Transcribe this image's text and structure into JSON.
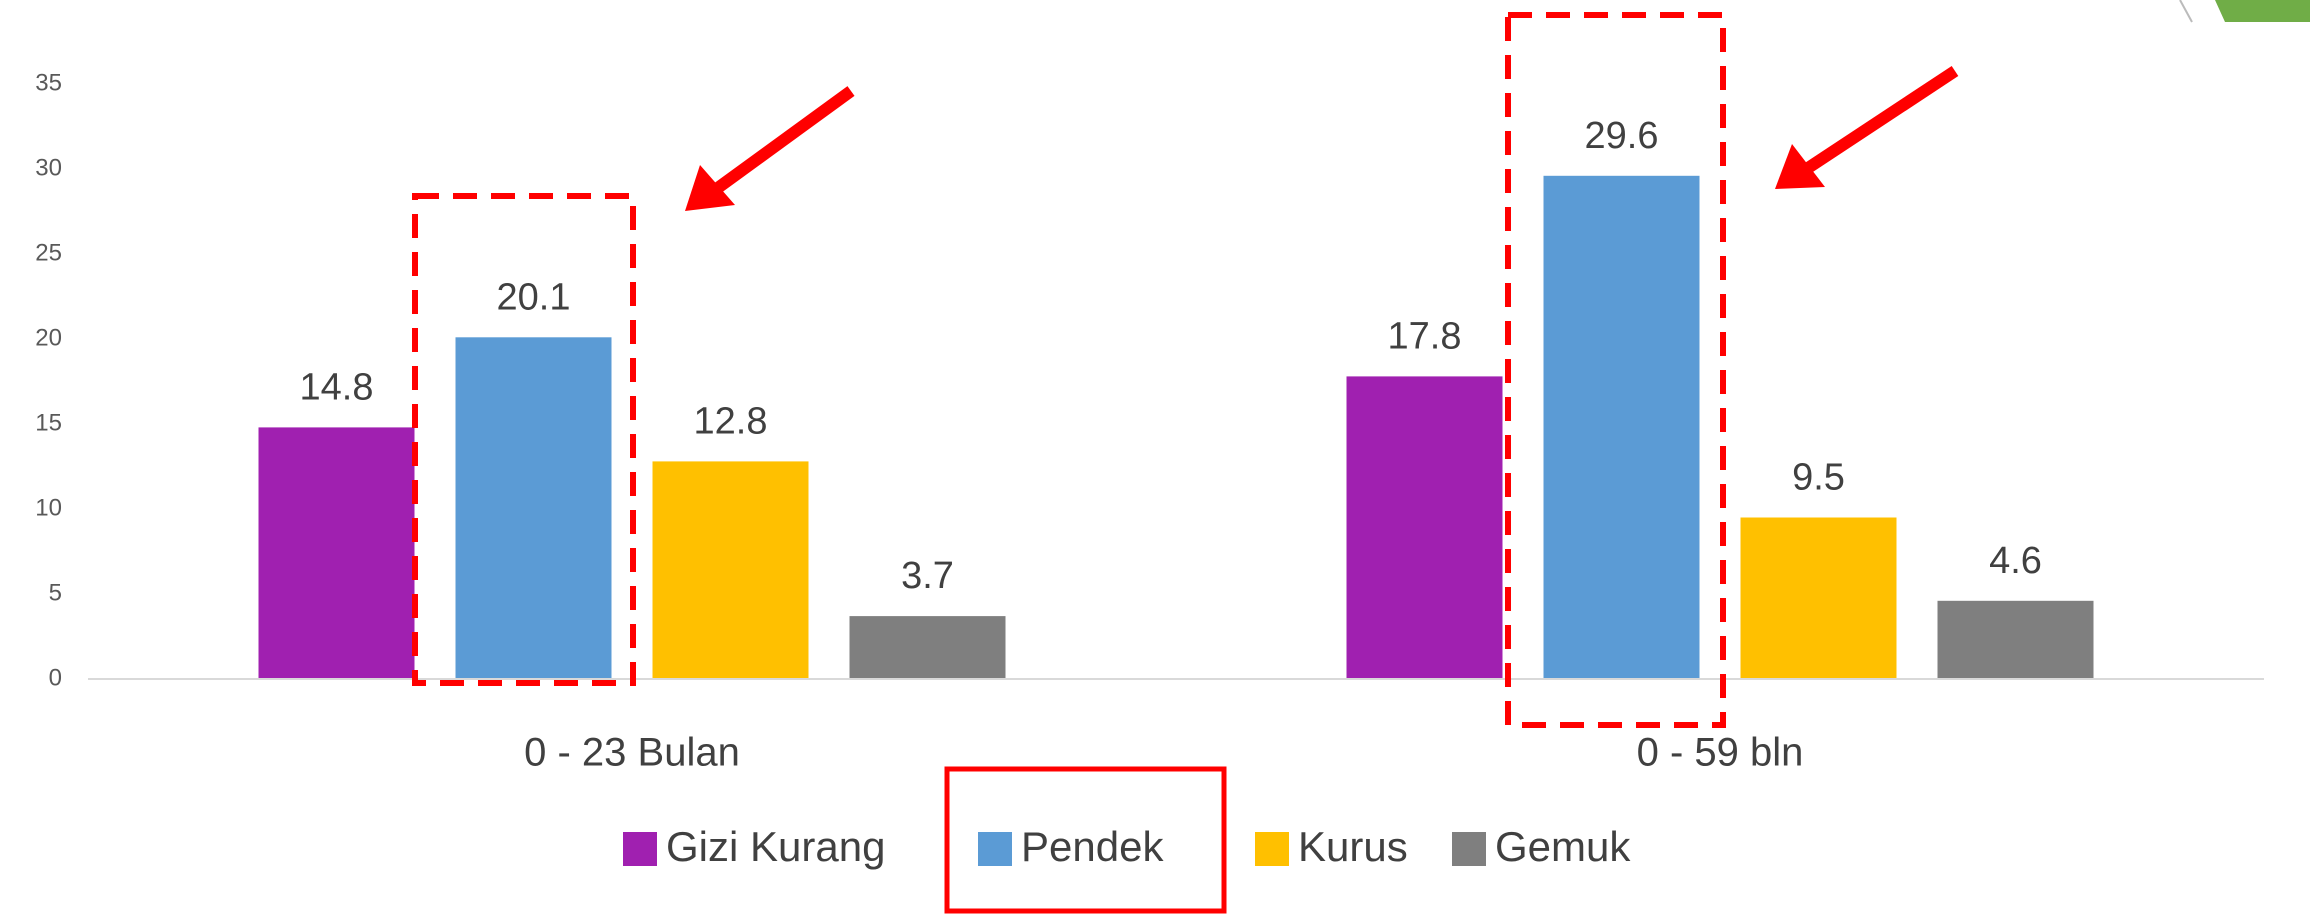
{
  "chart_data": {
    "type": "bar",
    "categories": [
      "0 - 23 Bulan",
      "0 - 59 bln"
    ],
    "series": [
      {
        "name": "Gizi Kurang",
        "color": "#a020b0",
        "values": [
          14.8,
          17.8
        ]
      },
      {
        "name": "Pendek",
        "color": "#5b9bd5",
        "values": [
          20.1,
          29.6
        ]
      },
      {
        "name": "Kurus",
        "color": "#ffc000",
        "values": [
          12.8,
          9.5
        ]
      },
      {
        "name": "Gemuk",
        "color": "#7f7f7f",
        "values": [
          3.7,
          4.6
        ]
      }
    ],
    "ylim": [
      0,
      35
    ],
    "yticks": [
      0,
      5,
      10,
      15,
      20,
      25,
      30,
      35
    ],
    "grid": false,
    "legend": "bottom"
  }
}
